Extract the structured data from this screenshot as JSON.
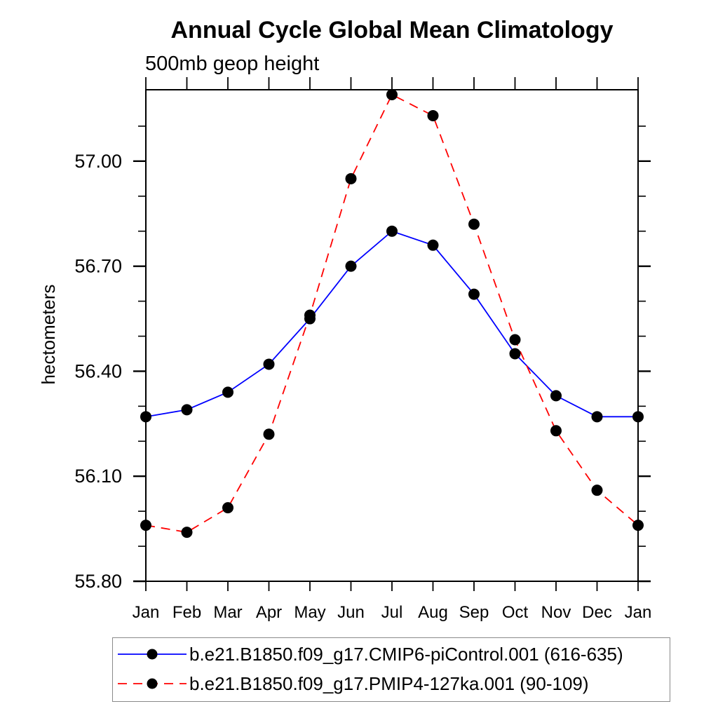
{
  "title": "Annual Cycle Global Mean Climatology",
  "subtitle": "500mb geop height",
  "chart_data": {
    "type": "line",
    "categories": [
      "Jan",
      "Feb",
      "Mar",
      "Apr",
      "May",
      "Jun",
      "Jul",
      "Aug",
      "Sep",
      "Oct",
      "Nov",
      "Dec",
      "Jan"
    ],
    "xlabel": "",
    "ylabel": "hectometers",
    "ylim": [
      55.8,
      57.204
    ],
    "ytick_major": [
      55.8,
      56.1,
      56.4,
      56.7,
      57.0
    ],
    "ytick_major_labels": [
      "55.80",
      "56.10",
      "56.40",
      "56.70",
      "57.00"
    ],
    "ytick_minor": [
      55.9,
      56.0,
      56.2,
      56.3,
      56.5,
      56.6,
      56.8,
      56.9,
      57.1
    ],
    "grid": false,
    "legend_position": "bottom-box",
    "marker": "filled-circle",
    "marker_color": "#000000",
    "axis_color": "#000000",
    "series": [
      {
        "name": "b.e21.B1850.f09_g17.CMIP6-piControl.001 (616-635)",
        "color": "#0000ff",
        "line_style": "solid",
        "values": [
          56.27,
          56.29,
          56.34,
          56.42,
          56.55,
          56.7,
          56.8,
          56.76,
          56.62,
          56.45,
          56.33,
          56.27,
          56.27
        ]
      },
      {
        "name": "b.e21.B1850.f09_g17.PMIP4-127ka.001 (90-109)",
        "color": "#ff0000",
        "line_style": "dashed",
        "values": [
          55.96,
          55.94,
          56.01,
          56.22,
          56.56,
          56.95,
          57.19,
          57.13,
          56.82,
          56.49,
          56.23,
          56.06,
          55.96
        ]
      }
    ]
  }
}
